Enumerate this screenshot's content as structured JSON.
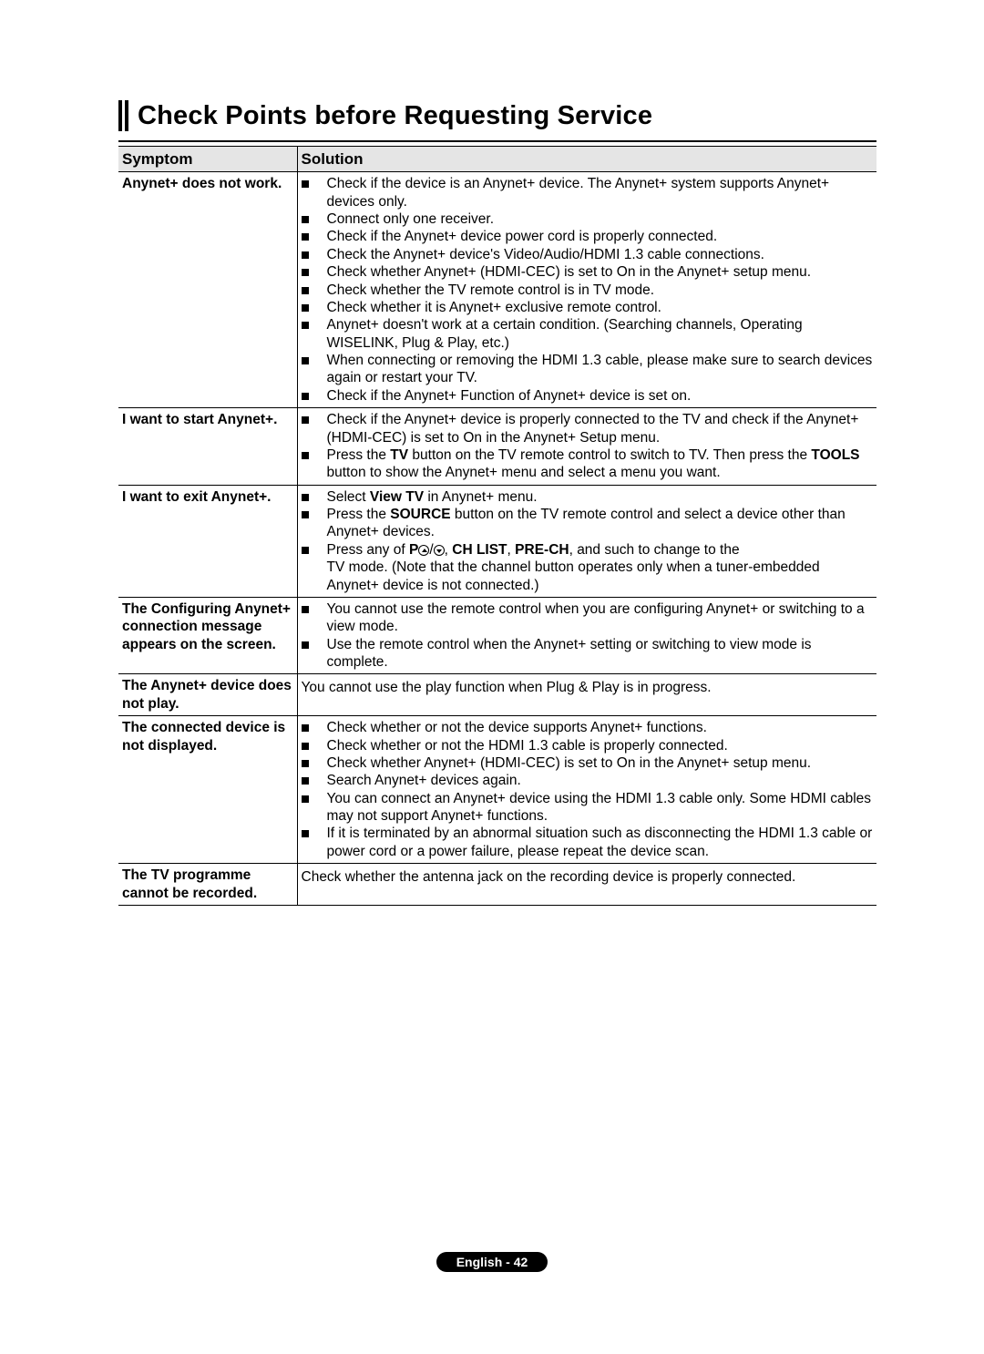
{
  "title": "Check Points before Requesting Service",
  "headers": {
    "col1": "Symptom",
    "col2": "Solution"
  },
  "rows": [
    {
      "symptom": "Anynet+ does not work.",
      "type": "list",
      "items": [
        [
          {
            "t": "Check if the device is an Anynet+ device. The Anynet+ system supports Anynet+ devices only."
          }
        ],
        [
          {
            "t": "Connect only one receiver."
          }
        ],
        [
          {
            "t": "Check if the Anynet+ device power cord is properly connected."
          }
        ],
        [
          {
            "t": "Check the Anynet+ device's Video/Audio/HDMI 1.3 cable connections."
          }
        ],
        [
          {
            "t": "Check whether Anynet+ (HDMI-CEC) is set to On in the Anynet+ setup menu."
          }
        ],
        [
          {
            "t": "Check whether the TV remote control is in TV mode."
          }
        ],
        [
          {
            "t": "Check whether it is Anynet+ exclusive remote control."
          }
        ],
        [
          {
            "t": "Anynet+ doesn't work at a certain condition. (Searching channels, Operating WISELINK, Plug & Play, etc.)"
          }
        ],
        [
          {
            "t": "When connecting or removing the HDMI 1.3 cable, please make sure to search devices again or restart your TV."
          }
        ],
        [
          {
            "t": "Check if the Anynet+ Function of Anynet+ device is set on."
          }
        ]
      ]
    },
    {
      "symptom": "I want to start Anynet+.",
      "type": "list",
      "items": [
        [
          {
            "t": "Check if the Anynet+ device is properly connected to the TV and check if the Anynet+ (HDMI-CEC) is set to On in the Anynet+ Setup menu."
          }
        ],
        [
          {
            "t": "Press the "
          },
          {
            "t": "TV",
            "b": true
          },
          {
            "t": " button on the TV remote control to switch to TV. Then press the "
          },
          {
            "t": "TOOLS",
            "b": true
          },
          {
            "t": " button to show the Anynet+ menu and select a menu you want."
          }
        ]
      ]
    },
    {
      "symptom": "I want to exit Anynet+.",
      "type": "list",
      "items": [
        [
          {
            "t": "Select "
          },
          {
            "t": "View TV",
            "b": true
          },
          {
            "t": " in Anynet+ menu."
          }
        ],
        [
          {
            "t": "Press the "
          },
          {
            "t": "SOURCE",
            "b": true
          },
          {
            "t": " button on the TV remote control and select a device other than Anynet+ devices."
          }
        ],
        [
          {
            "t": "Press any of "
          },
          {
            "t": "P",
            "b": true
          },
          {
            "icon": "up"
          },
          {
            "t": "/"
          },
          {
            "icon": "down"
          },
          {
            "t": ", "
          },
          {
            "t": "CH LIST",
            "b": true
          },
          {
            "t": ", "
          },
          {
            "t": "PRE-CH",
            "b": true
          },
          {
            "t": ", and such to change to the"
          },
          {
            "br": true
          },
          {
            "t": "TV mode. (Note that the channel button operates only when a tuner-embedded Anynet+ device is not connected.)"
          }
        ]
      ]
    },
    {
      "symptom": "The Configuring Anynet+ connection message appears on the screen.",
      "type": "list",
      "items": [
        [
          {
            "t": "You cannot use the remote control when you are configuring Anynet+ or switching to a view mode."
          }
        ],
        [
          {
            "t": "Use the remote control when the Anynet+ setting or switching to view mode is complete."
          }
        ]
      ]
    },
    {
      "symptom": "The Anynet+ device does not play.",
      "type": "plain",
      "text": "You cannot use the play function when Plug & Play is in progress."
    },
    {
      "symptom": "The connected device is not displayed.",
      "type": "list",
      "items": [
        [
          {
            "t": "Check whether or not the device supports Anynet+ functions."
          }
        ],
        [
          {
            "t": "Check whether or not the HDMI 1.3 cable is properly connected."
          }
        ],
        [
          {
            "t": "Check whether Anynet+ (HDMI-CEC) is set to On in the Anynet+ setup menu."
          }
        ],
        [
          {
            "t": "Search Anynet+ devices again."
          }
        ],
        [
          {
            "t": "You can connect an Anynet+ device using the HDMI 1.3 cable only. Some HDMI cables may not support Anynet+ functions."
          }
        ],
        [
          {
            "t": "If it is terminated by an abnormal situation such as disconnecting the HDMI 1.3 cable or power cord or a power failure, please repeat the device scan."
          }
        ]
      ]
    },
    {
      "symptom": "The TV programme cannot be recorded.",
      "type": "plain",
      "text": "Check whether the antenna jack on the recording device is properly connected."
    }
  ],
  "footer": "English - 42"
}
